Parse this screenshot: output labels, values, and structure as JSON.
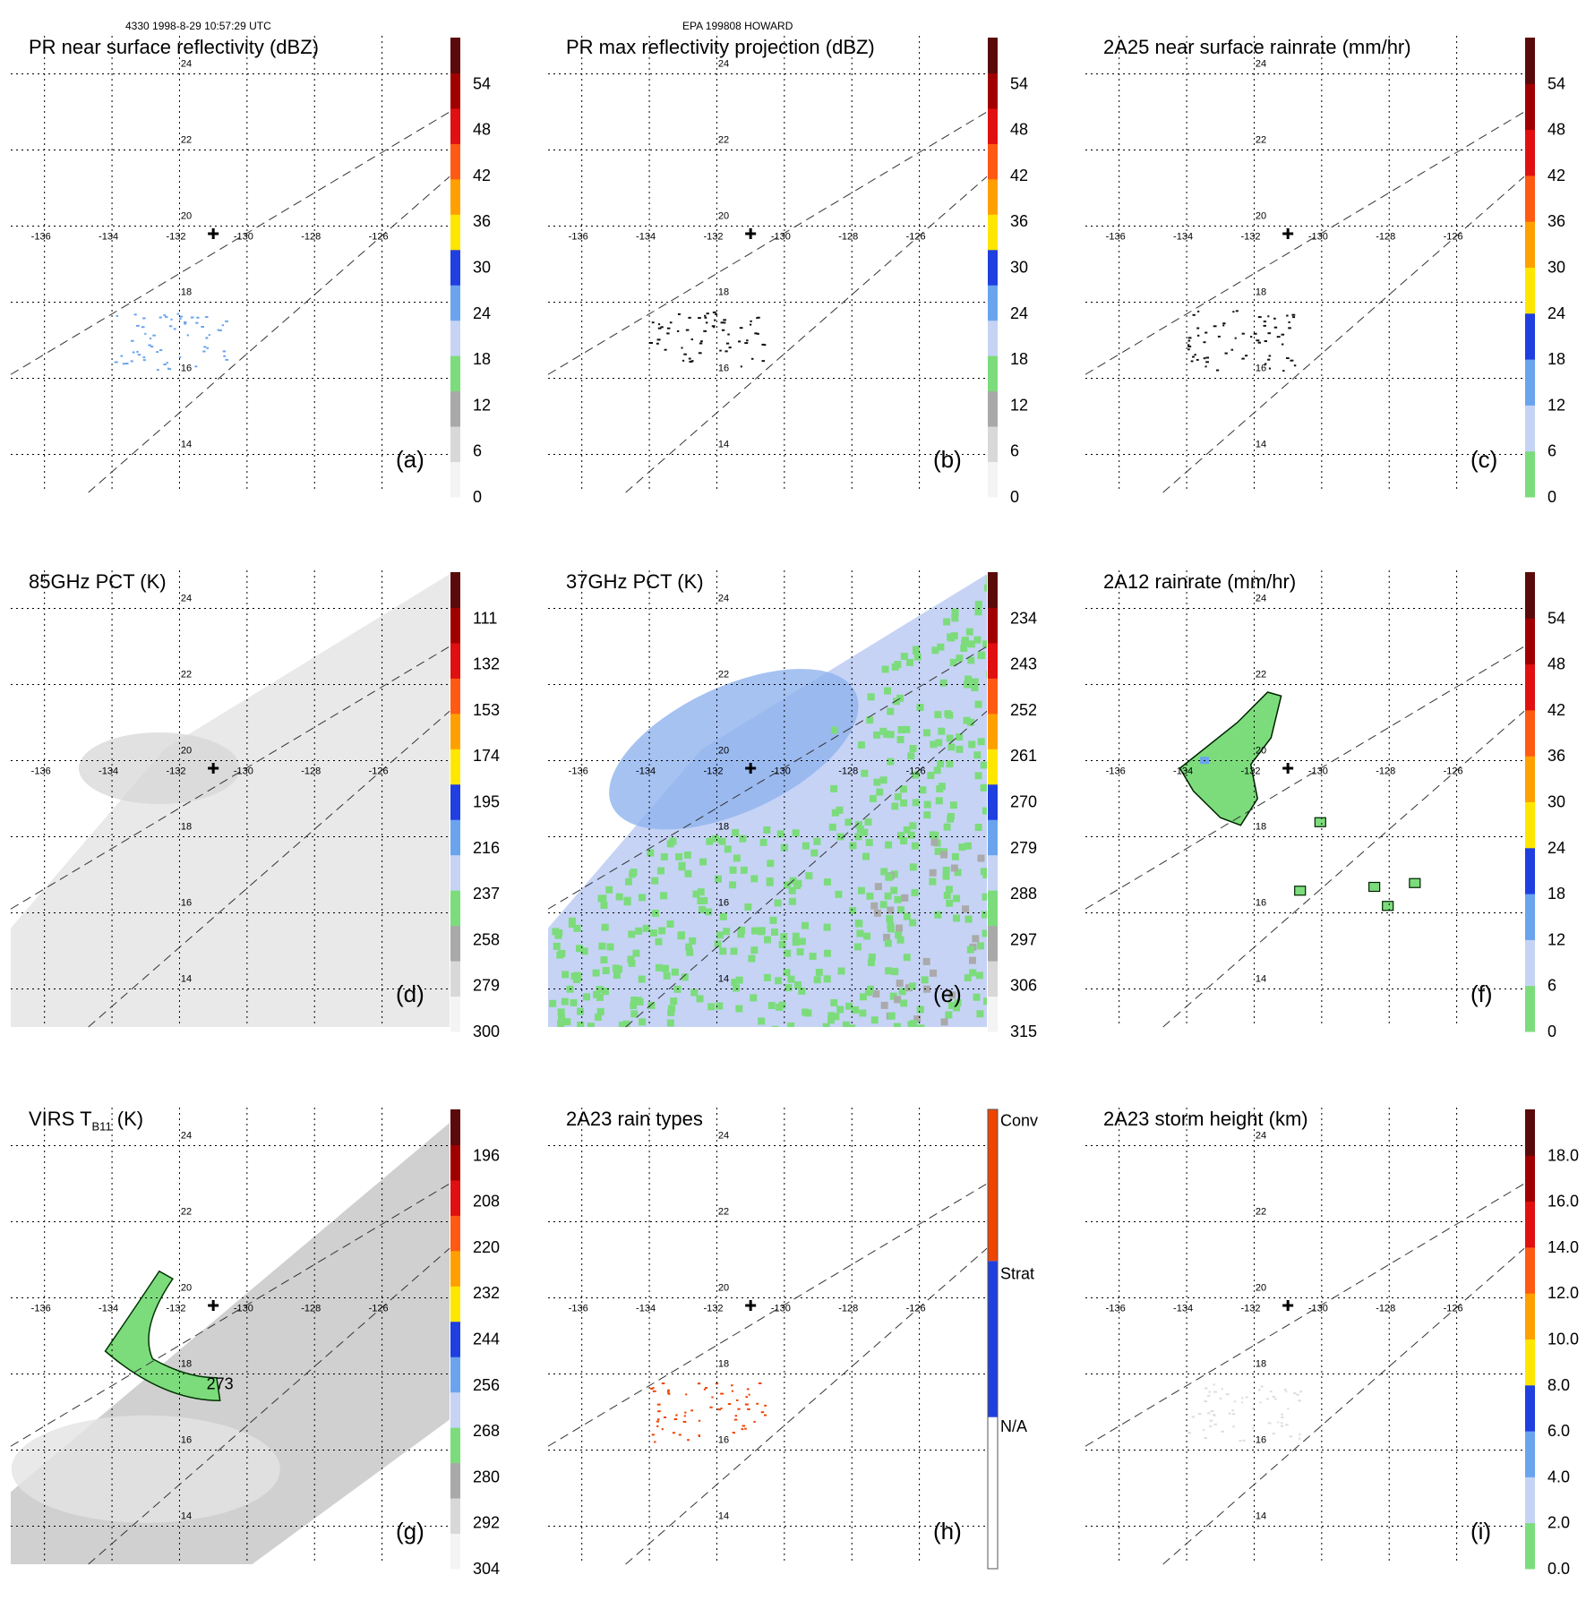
{
  "header": {
    "left": "4330 1998-8-29 10:57:29 UTC",
    "center": "EPA 199808 HOWARD"
  },
  "colors": {
    "swath_gray": "#e8e8e8",
    "swath_gray_dark": "#c4c4c4",
    "light_blue": "#c6d3f5",
    "mid_blue": "#8fb3ee",
    "green": "#7cdc7c",
    "orange_red": "#ee4400",
    "contour": "#003300"
  },
  "axes": {
    "lon_ticks": [
      -136,
      -134,
      -132,
      -130,
      -128,
      -126
    ],
    "lat_ticks": [
      24,
      22,
      20,
      18,
      16,
      14
    ],
    "lon_range": [
      -137,
      -124
    ],
    "lat_range": [
      13,
      25
    ]
  },
  "storm_center": {
    "lon": -131,
    "lat": 19.8
  },
  "chart_data": [
    {
      "id": "a",
      "type": "heatmap",
      "panel_label": "(a)",
      "title": "PR near surface reflectivity (dBZ)",
      "colorbar": {
        "ticks": [
          "0",
          "6",
          "12",
          "18",
          "24",
          "30",
          "36",
          "42",
          "48",
          "54"
        ],
        "min": 0,
        "max": 60,
        "stops": 10
      },
      "swath": "pr"
    },
    {
      "id": "b",
      "type": "heatmap",
      "panel_label": "(b)",
      "title": "PR max reflectivity projection (dBZ)",
      "colorbar": {
        "ticks": [
          "0",
          "6",
          "12",
          "18",
          "24",
          "30",
          "36",
          "42",
          "48",
          "54"
        ],
        "min": 0,
        "max": 60,
        "stops": 10
      },
      "swath": "pr"
    },
    {
      "id": "c",
      "type": "heatmap",
      "panel_label": "(c)",
      "title": "2A25 near surface rainrate (mm/hr)",
      "colorbar": {
        "ticks": [
          "0",
          "6",
          "12",
          "18",
          "24",
          "30",
          "36",
          "42",
          "48",
          "54"
        ],
        "min": 0,
        "max": 60,
        "stops": 10,
        "scheme": "rain"
      },
      "swath": "pr"
    },
    {
      "id": "d",
      "type": "heatmap",
      "panel_label": "(d)",
      "title": "85GHz PCT (K)",
      "colorbar": {
        "ticks": [
          "300",
          "279",
          "258",
          "237",
          "216",
          "195",
          "174",
          "153",
          "132",
          "111"
        ],
        "min": 300,
        "max": 90,
        "stops": 10
      },
      "swath": "tmi"
    },
    {
      "id": "e",
      "type": "heatmap",
      "panel_label": "(e)",
      "title": "37GHz PCT (K)",
      "colorbar": {
        "ticks": [
          "315",
          "306",
          "297",
          "288",
          "279",
          "270",
          "261",
          "252",
          "243",
          "234"
        ],
        "min": 315,
        "max": 225,
        "stops": 10
      },
      "swath": "tmi"
    },
    {
      "id": "f",
      "type": "heatmap",
      "panel_label": "(f)",
      "title": "2A12 rainrate (mm/hr)",
      "colorbar": {
        "ticks": [
          "0",
          "6",
          "12",
          "18",
          "24",
          "30",
          "36",
          "42",
          "48",
          "54"
        ],
        "min": 0,
        "max": 60,
        "stops": 10,
        "scheme": "rain"
      },
      "swath": "pr"
    },
    {
      "id": "g",
      "type": "heatmap",
      "panel_label": "(g)",
      "title_main": "VIRS T",
      "title_sub": "B11",
      "title_unit": " (K)",
      "contour_label": "273",
      "colorbar": {
        "ticks": [
          "304",
          "292",
          "280",
          "268",
          "256",
          "244",
          "232",
          "220",
          "208",
          "196"
        ],
        "min": 304,
        "max": 184,
        "stops": 10
      },
      "swath": "virs"
    },
    {
      "id": "h",
      "type": "heatmap",
      "panel_label": "(h)",
      "title": "2A23 rain types",
      "colorbar": {
        "ticks": [
          "N/A",
          "Strat",
          "Conv"
        ],
        "categorical": true
      },
      "swath": "pr"
    },
    {
      "id": "i",
      "type": "heatmap",
      "panel_label": "(i)",
      "title": "2A23 storm height (km)",
      "colorbar": {
        "ticks": [
          "0.0",
          "2.0",
          "4.0",
          "6.0",
          "8.0",
          "10.0",
          "12.0",
          "14.0",
          "16.0",
          "18.0"
        ],
        "min": 0,
        "max": 20,
        "stops": 10,
        "scheme": "rain"
      },
      "swath": "pr"
    }
  ]
}
